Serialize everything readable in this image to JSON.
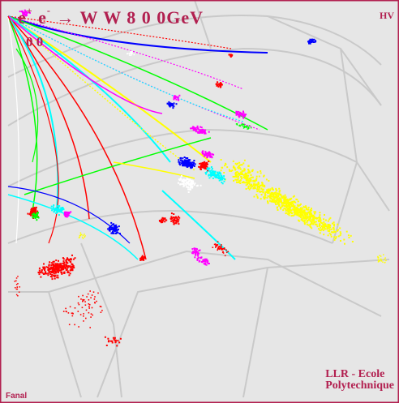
{
  "title": {
    "beam1": "e",
    "beam1_charge": "+",
    "beam2": "e",
    "beam2_charge": "-",
    "arrow": "→",
    "products": "W W",
    "energy": "8 0 0GeV"
  },
  "subtitle": "0 0",
  "corner_top_right": "HV",
  "corner_bottom_left": "Fanal",
  "credit": {
    "line1": "LLR - Ecole",
    "line2": "Polytechnique"
  },
  "colors": {
    "background": "#e6e6e6",
    "frame": "#b22050",
    "label": "#b22050",
    "detector_lines": "#c9c9c9",
    "track_colors": [
      "#ff0000",
      "#0000ff",
      "#00ff00",
      "#ff00ff",
      "#ffff00",
      "#00ffff",
      "#ffffff"
    ]
  },
  "icons": {
    "title_arrow": "right-arrow-glyph"
  }
}
